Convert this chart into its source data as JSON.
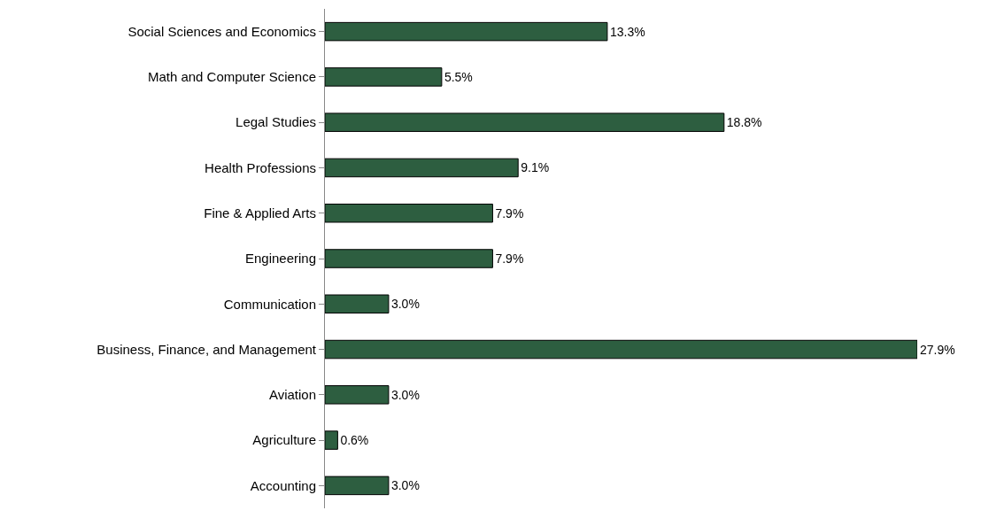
{
  "chart_data": {
    "type": "bar",
    "orientation": "horizontal",
    "categories": [
      "Social Sciences and Economics",
      "Math and Computer Science",
      "Legal Studies",
      "Health Professions",
      "Fine & Applied Arts",
      "Engineering",
      "Communication",
      "Business, Finance, and Management",
      "Aviation",
      "Agriculture",
      "Accounting"
    ],
    "values": [
      13.3,
      5.5,
      18.8,
      9.1,
      7.9,
      7.9,
      3.0,
      27.9,
      3.0,
      0.6,
      3.0
    ],
    "value_labels": [
      "13.3%",
      "5.5%",
      "18.8%",
      "9.1%",
      "7.9%",
      "7.9%",
      "3.0%",
      "27.9%",
      "3.0%",
      "0.6%",
      "3.0%"
    ],
    "color": "#2d5e40",
    "tick_labels": "y"
  }
}
